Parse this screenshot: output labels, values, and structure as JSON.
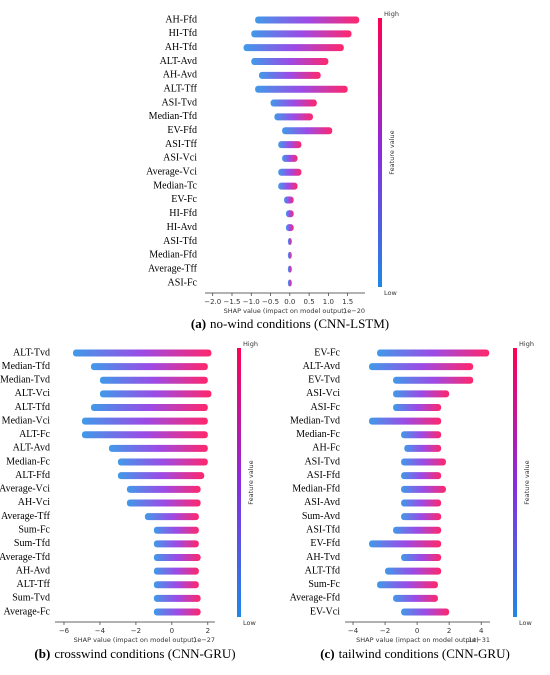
{
  "chart_data": [
    {
      "type": "shap-summary",
      "caption_label": "(a)",
      "caption": "no-wind conditions (CNN-LSTM)",
      "xlabel": "SHAP value (impact on model output)",
      "x_offset_label": "1e−20",
      "colorbar": {
        "high": "High",
        "low": "Low",
        "label": "Feature value",
        "colors": [
          "#ff0052",
          "#8a2be2",
          "#1e88e5"
        ]
      },
      "xlim": [
        -2.2,
        1.95
      ],
      "xticks": [
        {
          "value": -2.0,
          "label": "−2.0"
        },
        {
          "value": -1.5,
          "label": "−1.5"
        },
        {
          "value": -1.0,
          "label": "−1.0"
        },
        {
          "value": -0.5,
          "label": "−0.5"
        },
        {
          "value": 0,
          "label": "0.0"
        },
        {
          "value": 0.5,
          "label": "0.5"
        },
        {
          "value": 1.0,
          "label": "1.0"
        },
        {
          "value": 1.5,
          "label": "1.5"
        }
      ],
      "categories": [
        "AH-Ffd",
        "HI-Tfd",
        "AH-Tfd",
        "ALT-Avd",
        "AH-Avd",
        "ALT-Tff",
        "ASI-Tvd",
        "Median-Tfd",
        "EV-Ffd",
        "ASI-Tff",
        "ASI-Vci",
        "Average-Vci",
        "Median-Tc",
        "EV-Fc",
        "HI-Ffd",
        "HI-Avd",
        "ASI-Tfd",
        "Median-Ffd",
        "Average-Tff",
        "ASI-Fc"
      ],
      "ranges": [
        [
          -0.9,
          1.8
        ],
        [
          -1.0,
          1.6
        ],
        [
          -1.2,
          1.4
        ],
        [
          -1.0,
          1.0
        ],
        [
          -0.8,
          0.8
        ],
        [
          -0.9,
          1.5
        ],
        [
          -0.5,
          0.7
        ],
        [
          -0.4,
          0.6
        ],
        [
          -0.2,
          1.1
        ],
        [
          -0.3,
          0.3
        ],
        [
          -0.2,
          0.2
        ],
        [
          -0.3,
          0.3
        ],
        [
          -0.3,
          0.2
        ],
        [
          -0.15,
          0.1
        ],
        [
          -0.1,
          0.1
        ],
        [
          -0.1,
          0.1
        ],
        [
          -0.05,
          0.05
        ],
        [
          -0.05,
          0.05
        ],
        [
          -0.05,
          0.05
        ],
        [
          -0.05,
          0.05
        ]
      ]
    },
    {
      "type": "shap-summary",
      "caption_label": "(b)",
      "caption": "crosswind conditions (CNN-GRU)",
      "xlabel": "SHAP value (impact on model output)",
      "x_offset_label": "1e−27",
      "colorbar": {
        "high": "High",
        "low": "Low",
        "label": "Feature value",
        "colors": [
          "#ff0052",
          "#8a2be2",
          "#1e88e5"
        ]
      },
      "xlim": [
        -6.5,
        2.4
      ],
      "xticks": [
        {
          "value": -6,
          "label": "−6"
        },
        {
          "value": -4,
          "label": "−4"
        },
        {
          "value": -2,
          "label": "−2"
        },
        0,
        2
      ],
      "categories": [
        "ALT-Tvd",
        "Median-Tfd",
        "Median-Tvd",
        "ALT-Vci",
        "ALT-Tfd",
        "Median-Vci",
        "ALT-Fc",
        "ALT-Avd",
        "Median-Fc",
        "ALT-Ffd",
        "Average-Vci",
        "AH-Vci",
        "Average-Tff",
        "Sum-Fc",
        "Sum-Tfd",
        "Average-Tfd",
        "AH-Avd",
        "ALT-Tff",
        "Sum-Tvd",
        "Average-Fc"
      ],
      "ranges": [
        [
          -5.5,
          2.2
        ],
        [
          -4.5,
          2
        ],
        [
          -4,
          2
        ],
        [
          -4,
          2.2
        ],
        [
          -4.5,
          2
        ],
        [
          -5,
          2
        ],
        [
          -5,
          2
        ],
        [
          -3.5,
          2
        ],
        [
          -3,
          2
        ],
        [
          -3,
          1.8
        ],
        [
          -2.5,
          1.6
        ],
        [
          -2.5,
          1.6
        ],
        [
          -1.5,
          1.5
        ],
        [
          -1,
          1.5
        ],
        [
          -1,
          1.5
        ],
        [
          -1,
          1.6
        ],
        [
          -1,
          1.5
        ],
        [
          -1,
          1.5
        ],
        [
          -1,
          1.6
        ],
        [
          -1,
          1.6
        ]
      ]
    },
    {
      "type": "shap-summary",
      "caption_label": "(c)",
      "caption": "tailwind conditions (CNN-GRU)",
      "xlabel": "SHAP value (impact on model output)",
      "x_offset_label": "1e−31",
      "colorbar": {
        "high": "High",
        "low": "Low",
        "label": "Feature value",
        "colors": [
          "#ff0052",
          "#8a2be2",
          "#1e88e5"
        ]
      },
      "xlim": [
        -4.5,
        4.55
      ],
      "xticks": [
        {
          "value": -4,
          "label": "−4"
        },
        {
          "value": -2,
          "label": "−2"
        },
        0,
        2,
        4
      ],
      "categories": [
        "EV-Fc",
        "ALT-Avd",
        "EV-Tvd",
        "ASI-Vci",
        "ASI-Fc",
        "Median-Tvd",
        "Median-Fc",
        "AH-Fc",
        "ASI-Tvd",
        "ASI-Ffd",
        "Median-Ffd",
        "ASI-Avd",
        "Sum-Avd",
        "ASI-Tfd",
        "EV-Ffd",
        "AH-Tvd",
        "ALT-Tfd",
        "Sum-Fc",
        "Average-Ffd",
        "EV-Vci"
      ],
      "ranges": [
        [
          -2.5,
          4.5
        ],
        [
          -3,
          3.5
        ],
        [
          -1.5,
          3.5
        ],
        [
          -1.5,
          2
        ],
        [
          -1.5,
          1.5
        ],
        [
          -3,
          1.5
        ],
        [
          -1,
          1.5
        ],
        [
          -0.8,
          1.5
        ],
        [
          -1,
          1.8
        ],
        [
          -1,
          1.5
        ],
        [
          -1,
          1.8
        ],
        [
          -1,
          1.5
        ],
        [
          -1,
          1.5
        ],
        [
          -1.5,
          1.5
        ],
        [
          -3,
          1.5
        ],
        [
          -1,
          1.5
        ],
        [
          -2,
          1.5
        ],
        [
          -2.5,
          1.3
        ],
        [
          -1.5,
          1.3
        ],
        [
          -1,
          2
        ]
      ]
    }
  ]
}
